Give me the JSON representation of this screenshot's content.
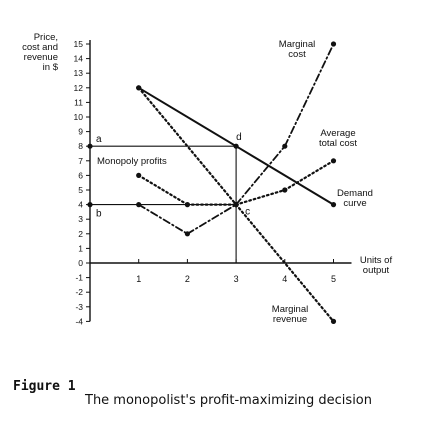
{
  "caption": {
    "label": "Figure 1",
    "text": "The monopolist's profit-maximizing decision"
  },
  "chart_data": {
    "type": "line",
    "ylabel": "Price, cost and revenue in $",
    "xlabel": "Units of output",
    "xlim": [
      0,
      5
    ],
    "ylim": [
      -4,
      15
    ],
    "x_ticks": [
      "1",
      "2",
      "3",
      "4",
      "5"
    ],
    "y_ticks": [
      "15",
      "14",
      "13",
      "12",
      "11",
      "10",
      "9",
      "8",
      "7",
      "6",
      "5",
      "4",
      "3",
      "2",
      "1",
      "0",
      "-1",
      "-2",
      "-3",
      "-4"
    ],
    "grid": false,
    "series": [
      {
        "name": "Marginal cost",
        "style": "dash-dot",
        "points": [
          [
            1,
            4
          ],
          [
            2,
            2
          ],
          [
            3,
            4
          ],
          [
            4,
            8
          ],
          [
            5,
            15
          ]
        ]
      },
      {
        "name": "Average total cost",
        "style": "dotted",
        "points": [
          [
            1,
            6
          ],
          [
            2,
            4
          ],
          [
            3,
            4
          ],
          [
            4,
            5
          ],
          [
            5,
            7
          ]
        ]
      },
      {
        "name": "Demand curve",
        "style": "solid",
        "points": [
          [
            1,
            12
          ],
          [
            3,
            8
          ],
          [
            5,
            4
          ]
        ]
      },
      {
        "name": "Marginal revenue",
        "style": "dotted",
        "points": [
          [
            1,
            12
          ],
          [
            3,
            4
          ],
          [
            5,
            -4
          ]
        ]
      }
    ],
    "annotations": {
      "monopoly_profits": "Monopoly profits",
      "point_a": "a",
      "point_b": "b",
      "point_c": "c",
      "point_d": "d"
    },
    "guides": {
      "profit_rect_x": 3,
      "profit_rect_top": 8,
      "profit_rect_bottom": 4
    }
  }
}
